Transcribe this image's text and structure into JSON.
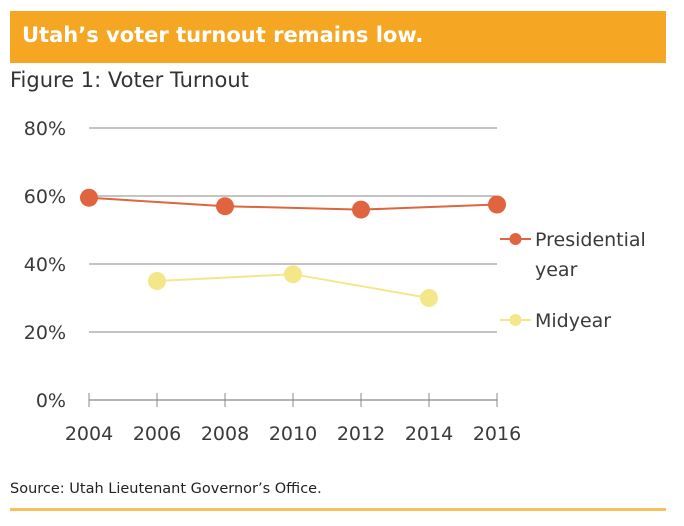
{
  "banner": {
    "title": "Utah’s voter turnout remains low."
  },
  "figure_title": "Figure 1: Voter Turnout",
  "source": "Source:  Utah Lieutenant Governor’s Office.",
  "colors": {
    "banner": "#f5a623",
    "presidential": "#e0643f",
    "midyear": "#f4e78a",
    "grid": "#888888"
  },
  "chart_data": {
    "type": "line",
    "title": "Figure 1: Voter Turnout",
    "xlabel": "",
    "ylabel": "",
    "x_ticks": [
      "2004",
      "2006",
      "2008",
      "2010",
      "2012",
      "2014",
      "2016"
    ],
    "y_ticks": [
      "0%",
      "20%",
      "40%",
      "60%",
      "80%"
    ],
    "ylim": [
      0,
      80
    ],
    "grid": true,
    "legend_position": "right",
    "series": [
      {
        "name": "Presidential year",
        "legend_lines": [
          "Presidential",
          "year"
        ],
        "color": "#e0643f",
        "x": [
          2004,
          2008,
          2012,
          2016
        ],
        "y": [
          59.5,
          57,
          56,
          57.5
        ]
      },
      {
        "name": "Midyear",
        "legend_lines": [
          "Midyear"
        ],
        "color": "#f4e78a",
        "x": [
          2006,
          2010,
          2014
        ],
        "y": [
          35,
          37,
          30
        ]
      }
    ]
  }
}
